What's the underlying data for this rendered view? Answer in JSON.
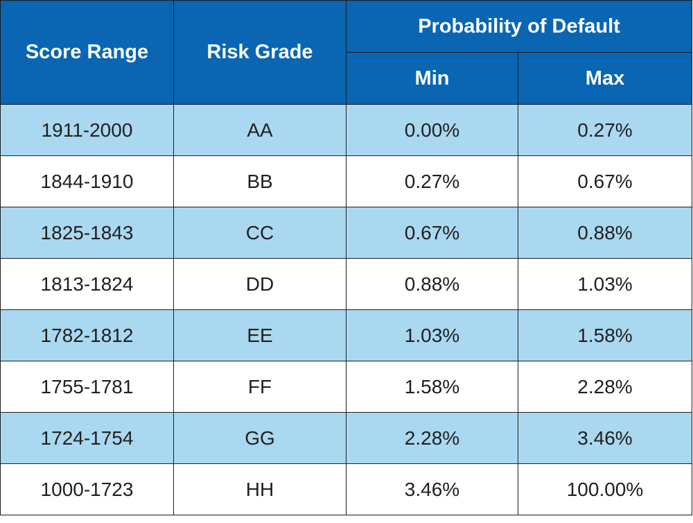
{
  "table": {
    "headers": {
      "score_range": "Score Range",
      "risk_grade": "Risk Grade",
      "probability_group": "Probability of Default",
      "min": "Min",
      "max": "Max"
    },
    "rows": [
      {
        "score_range": "1911-2000",
        "risk_grade": "AA",
        "min": "0.00%",
        "max": "0.27%"
      },
      {
        "score_range": "1844-1910",
        "risk_grade": "BB",
        "min": "0.27%",
        "max": "0.67%"
      },
      {
        "score_range": "1825-1843",
        "risk_grade": "CC",
        "min": "0.67%",
        "max": "0.88%"
      },
      {
        "score_range": "1813-1824",
        "risk_grade": "DD",
        "min": "0.88%",
        "max": "1.03%"
      },
      {
        "score_range": "1782-1812",
        "risk_grade": "EE",
        "min": "1.03%",
        "max": "1.58%"
      },
      {
        "score_range": "1755-1781",
        "risk_grade": "FF",
        "min": "1.58%",
        "max": "2.28%"
      },
      {
        "score_range": "1724-1754",
        "risk_grade": "GG",
        "min": "2.28%",
        "max": "3.46%"
      },
      {
        "score_range": "1000-1723",
        "risk_grade": "HH",
        "min": "3.46%",
        "max": "100.00%"
      }
    ],
    "colors": {
      "header_bg": "#0a66b3",
      "header_text": "#ffffff",
      "shaded_row": "#a9d8f0",
      "plain_row": "#ffffff",
      "border": "#1c1c1c"
    }
  }
}
